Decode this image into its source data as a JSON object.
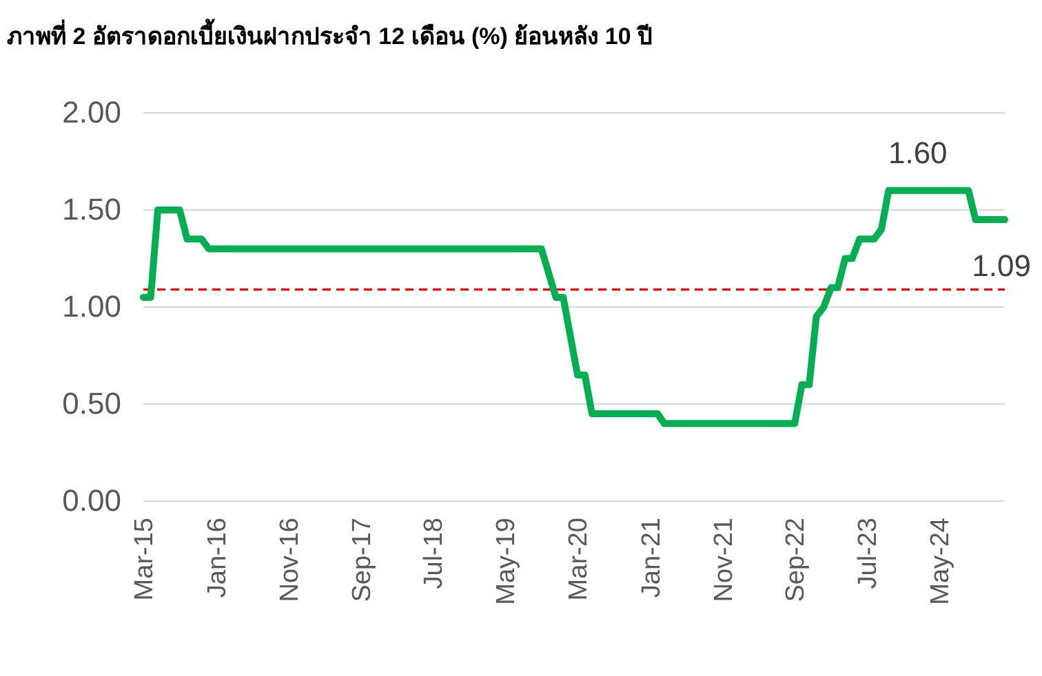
{
  "chart_data": {
    "type": "line",
    "title": "ภาพที่ 2 อัตราดอกเบี้ยเงินฝากประจำ 12 เดือน (%) ย้อนหลัง 10 ปี",
    "x": [
      "2015-03",
      "2015-04",
      "2015-05",
      "2015-08",
      "2015-09",
      "2015-11",
      "2015-12",
      "2019-10",
      "2019-12",
      "2020-01",
      "2020-03",
      "2020-04",
      "2020-05",
      "2021-02",
      "2021-03",
      "2022-09",
      "2022-10",
      "2022-11",
      "2022-12",
      "2023-01",
      "2023-02",
      "2023-03",
      "2023-04",
      "2023-05",
      "2023-06",
      "2023-08",
      "2023-09",
      "2023-10",
      "2024-09",
      "2024-10",
      "2025-02"
    ],
    "series": [
      {
        "color": "#00b050",
        "values": [
          1.05,
          1.05,
          1.5,
          1.5,
          1.35,
          1.35,
          1.3,
          1.3,
          1.05,
          1.05,
          0.65,
          0.65,
          0.45,
          0.45,
          0.4,
          0.4,
          0.6,
          0.6,
          0.95,
          1.0,
          1.1,
          1.1,
          1.25,
          1.25,
          1.35,
          1.35,
          1.4,
          1.6,
          1.6,
          1.45,
          1.45
        ]
      }
    ],
    "xlim": [
      "2015-03",
      "2025-02"
    ],
    "xticks": [
      {
        "value": "2015-03",
        "label": "Mar-15"
      },
      {
        "value": "2016-01",
        "label": "Jan-16"
      },
      {
        "value": "2016-11",
        "label": "Nov-16"
      },
      {
        "value": "2017-09",
        "label": "Sep-17"
      },
      {
        "value": "2018-07",
        "label": "Jul-18"
      },
      {
        "value": "2019-05",
        "label": "May-19"
      },
      {
        "value": "2020-03",
        "label": "Mar-20"
      },
      {
        "value": "2021-01",
        "label": "Jan-21"
      },
      {
        "value": "2021-11",
        "label": "Nov-21"
      },
      {
        "value": "2022-09",
        "label": "Sep-22"
      },
      {
        "value": "2023-07",
        "label": "Jul-23"
      },
      {
        "value": "2024-05",
        "label": "May-24"
      }
    ],
    "ylim": [
      0,
      2
    ],
    "yticks": [
      {
        "value": 0,
        "label": "0.00"
      },
      {
        "value": 0.5,
        "label": "0.50"
      },
      {
        "value": 1,
        "label": "1.00"
      },
      {
        "value": 1.5,
        "label": "1.50"
      },
      {
        "value": 2,
        "label": "2.00"
      }
    ],
    "grid": "y",
    "marker": "none",
    "line_style": "solid",
    "ref_lines": [
      {
        "axis": "y",
        "value": 1.09,
        "label": "1.09",
        "color": "#ff0000",
        "line_style": "dashed"
      }
    ],
    "annotations": [
      {
        "text": "1.60",
        "x": "2024-02",
        "y": 1.6
      }
    ]
  }
}
